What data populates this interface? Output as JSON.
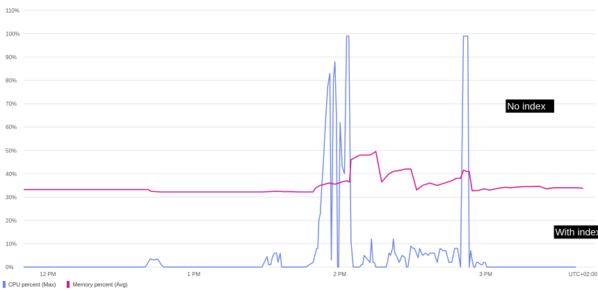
{
  "chart_data": {
    "type": "line",
    "y_tick_labels": [
      "0%",
      "10%",
      "20%",
      "30%",
      "40%",
      "50%",
      "60%",
      "70%",
      "80%",
      "90%",
      "100%",
      "110%"
    ],
    "ylim": [
      0,
      110
    ],
    "x_tick_labels": [
      "12 PM",
      "1 PM",
      "2 PM",
      "3 PM"
    ],
    "x_ticks": [
      11.833,
      12.833,
      13.833,
      14.833
    ],
    "xlim": [
      11.667,
      15.583
    ],
    "timezone_label": "UTC+02:00",
    "grid": true,
    "legend_position": "bottom-left",
    "series": [
      {
        "name": "CPU percent (Max)",
        "color": "#6c84e0",
        "x": [
          11.667,
          12.5,
          12.535,
          12.56,
          12.585,
          12.61,
          12.625,
          13.3,
          13.335,
          13.345,
          13.36,
          13.37,
          13.385,
          13.4,
          13.41,
          13.425,
          13.435,
          13.48,
          13.6,
          13.65,
          13.675,
          13.682,
          13.69,
          13.7,
          13.71,
          13.72,
          13.735,
          13.75,
          13.765,
          13.775,
          13.79,
          13.8,
          13.81,
          13.818,
          13.825,
          13.835,
          13.85,
          13.865,
          13.88,
          13.895,
          13.91,
          13.925,
          13.94,
          13.95,
          13.955,
          13.96,
          13.97,
          13.98,
          13.99,
          14.0,
          14.04,
          14.05,
          14.06,
          14.07,
          14.08,
          14.09,
          14.1,
          14.11,
          14.13,
          14.14,
          14.15,
          14.16,
          14.17,
          14.18,
          14.195,
          14.2,
          14.21,
          14.22,
          14.24,
          14.26,
          14.28,
          14.29,
          14.3,
          14.32,
          14.335,
          14.345,
          14.37,
          14.38,
          14.4,
          14.42,
          14.44,
          14.45,
          14.47,
          14.48,
          14.5,
          14.52,
          14.54,
          14.56,
          14.58,
          14.6,
          14.62,
          14.64,
          14.66,
          14.68,
          14.7,
          14.71,
          14.72,
          14.73,
          14.74,
          14.75,
          14.76,
          14.77,
          14.78,
          14.8,
          14.81,
          14.82,
          14.83,
          14.84,
          14.86,
          14.88,
          14.9,
          14.92,
          14.94,
          14.96,
          14.97,
          14.98,
          14.99,
          15.0,
          15.02,
          15.04,
          15.06,
          15.08,
          15.1,
          15.12,
          15.14,
          15.16,
          15.18,
          15.2,
          15.22,
          15.23,
          15.24,
          15.26,
          15.28,
          15.3,
          15.32,
          15.34,
          15.35,
          15.37,
          15.39,
          15.42,
          15.45
        ],
        "values": [
          0,
          0,
          3.5,
          3,
          3.5,
          1,
          0,
          0,
          4.5,
          1,
          1,
          4,
          6,
          6,
          2,
          6,
          0,
          0,
          0,
          2,
          8,
          8,
          20,
          23,
          35,
          44,
          62,
          77,
          83,
          3,
          81,
          88,
          65,
          0,
          0,
          62,
          43,
          40,
          99,
          99,
          11,
          0,
          0,
          0,
          0,
          0,
          0,
          1,
          1,
          5,
          2,
          12,
          2,
          2,
          0,
          0,
          0,
          0,
          0,
          0,
          0,
          2,
          6,
          5,
          8,
          12,
          6,
          5,
          2,
          5,
          4,
          0,
          0,
          9,
          8,
          8,
          4,
          8,
          5,
          6,
          5,
          6,
          6,
          6,
          2,
          8,
          7,
          7,
          2,
          2,
          8,
          8,
          0,
          99,
          99,
          99,
          0,
          7,
          3,
          0,
          0,
          2,
          2,
          1,
          1,
          2,
          2,
          0,
          0,
          0,
          0,
          0,
          0,
          0,
          0,
          0,
          0,
          0,
          0,
          0,
          0,
          0,
          0,
          0,
          0,
          0,
          0,
          0,
          0,
          0,
          0,
          0,
          0,
          0,
          0,
          0,
          0,
          0,
          0,
          0,
          0
        ]
      },
      {
        "name": "Memory percent (Avg)",
        "color": "#d1188f",
        "x": [
          11.667,
          12.5,
          12.52,
          12.54,
          12.6,
          12.7,
          12.8,
          12.9,
          13.0,
          13.2,
          13.3,
          13.4,
          13.45,
          13.5,
          13.55,
          13.6,
          13.65,
          13.66,
          13.67,
          13.7,
          13.73,
          13.76,
          13.8,
          13.85,
          13.88,
          13.9,
          13.91,
          13.94,
          13.97,
          14.0,
          14.04,
          14.08,
          14.12,
          14.17,
          14.2,
          14.25,
          14.28,
          14.32,
          14.36,
          14.4,
          14.45,
          14.5,
          14.55,
          14.6,
          14.63,
          14.66,
          14.68,
          14.7,
          14.72,
          14.74,
          14.78,
          14.82,
          14.86,
          14.9,
          14.94,
          14.97,
          15.0,
          15.05,
          15.1,
          15.15,
          15.2,
          15.25,
          15.3,
          15.35,
          15.4,
          15.45,
          15.5
        ],
        "values": [
          33.2,
          33.2,
          33.2,
          32.5,
          32.2,
          32.2,
          32.2,
          32.2,
          32.2,
          32.2,
          32.2,
          32.5,
          32.3,
          32.3,
          32.2,
          32.2,
          32.2,
          33.2,
          34,
          35,
          35.5,
          36,
          35.5,
          36.5,
          37,
          36.5,
          46,
          47,
          48,
          48,
          48,
          49.5,
          36.5,
          40,
          41,
          41.5,
          42,
          42,
          33,
          35,
          36,
          35,
          36,
          37,
          38,
          38,
          41.5,
          41,
          41,
          32.7,
          32.8,
          33.5,
          33,
          33.5,
          34,
          34.2,
          34,
          34.3,
          34.5,
          34.5,
          34.6,
          33.5,
          34,
          34,
          34,
          34,
          33.8
        ]
      }
    ],
    "annotations": [
      {
        "text": "No index",
        "x": 14.97,
        "y": 69
      },
      {
        "text": "With index",
        "x": 15.3,
        "y": 15
      }
    ]
  }
}
